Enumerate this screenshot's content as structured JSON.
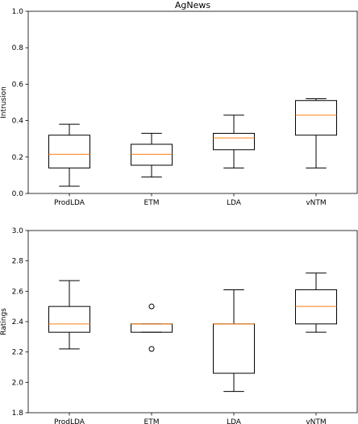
{
  "chart_data": [
    {
      "type": "box",
      "title": "AgNews",
      "ylabel": "Intrusion",
      "xlabel": "",
      "ylim": [
        0.0,
        1.0
      ],
      "yticks": [
        "0.0",
        "0.2",
        "0.4",
        "0.6",
        "0.8",
        "1.0"
      ],
      "categories": [
        "ProdLDA",
        "ETM",
        "LDA",
        "vNTM"
      ],
      "boxes": [
        {
          "whisker_low": 0.04,
          "q1": 0.14,
          "median": 0.215,
          "q3": 0.32,
          "whisker_high": 0.38,
          "outliers": []
        },
        {
          "whisker_low": 0.09,
          "q1": 0.155,
          "median": 0.215,
          "q3": 0.27,
          "whisker_high": 0.33,
          "outliers": []
        },
        {
          "whisker_low": 0.14,
          "q1": 0.24,
          "median": 0.305,
          "q3": 0.33,
          "whisker_high": 0.43,
          "outliers": []
        },
        {
          "whisker_low": 0.14,
          "q1": 0.32,
          "median": 0.43,
          "q3": 0.51,
          "whisker_high": 0.52,
          "outliers": []
        }
      ],
      "colors": {
        "box": "#000000",
        "median": "#ff7f0e"
      }
    },
    {
      "type": "box",
      "title": "",
      "ylabel": "Ratings",
      "xlabel": "",
      "ylim": [
        1.8,
        3.0
      ],
      "yticks": [
        "1.8",
        "2.0",
        "2.2",
        "2.4",
        "2.6",
        "2.8",
        "3.0"
      ],
      "categories": [
        "ProdLDA",
        "ETM",
        "LDA",
        "vNTM"
      ],
      "boxes": [
        {
          "whisker_low": 2.22,
          "q1": 2.33,
          "median": 2.385,
          "q3": 2.5,
          "whisker_high": 2.67,
          "outliers": []
        },
        {
          "whisker_low": 2.33,
          "q1": 2.33,
          "median": 2.385,
          "q3": 2.385,
          "whisker_high": 2.385,
          "outliers": [
            2.22,
            2.5
          ]
        },
        {
          "whisker_low": 1.94,
          "q1": 2.06,
          "median": 2.385,
          "q3": 2.385,
          "whisker_high": 2.61,
          "outliers": []
        },
        {
          "whisker_low": 2.33,
          "q1": 2.385,
          "median": 2.5,
          "q3": 2.61,
          "whisker_high": 2.72,
          "outliers": []
        }
      ],
      "colors": {
        "box": "#000000",
        "median": "#ff7f0e"
      }
    }
  ]
}
